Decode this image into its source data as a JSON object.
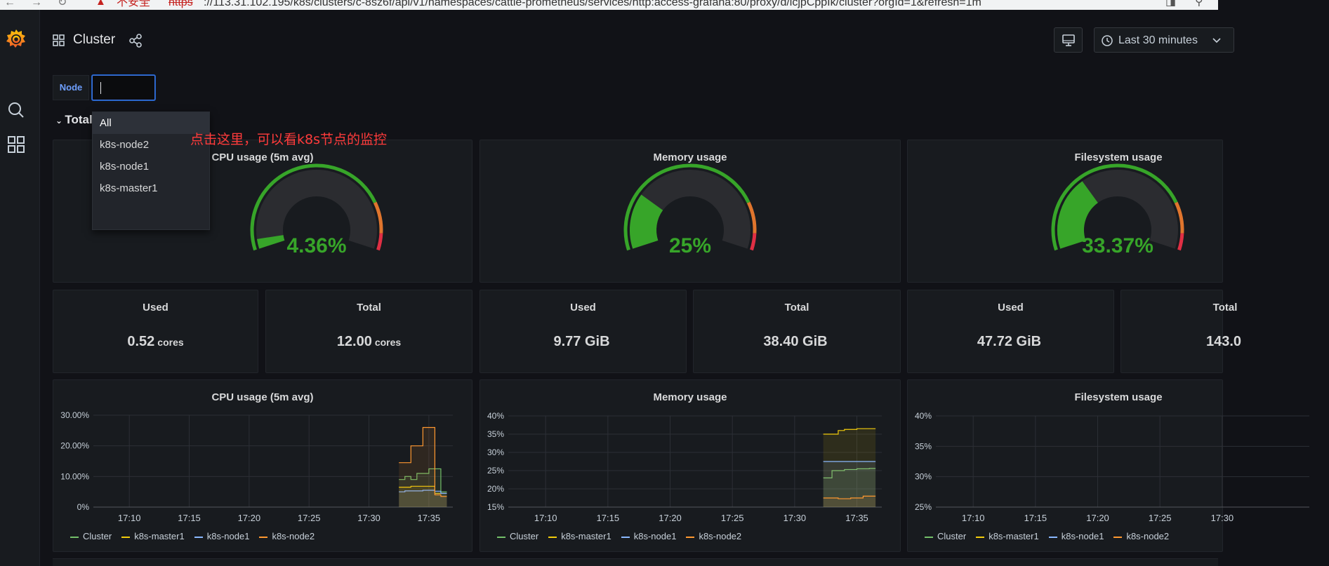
{
  "browser": {
    "security_label": "不安全",
    "protocol": "https",
    "url": "://113.31.102.195/k8s/clusters/c-8sz6f/api/v1/namespaces/cattle-prometheus/services/http:access-grafana:80/proxy/d/lcjpCppIk/cluster?orgId=1&refresh=1m"
  },
  "header": {
    "title": "Cluster",
    "time_range": "Last 30 minutes"
  },
  "variable": {
    "label": "Node",
    "value": ""
  },
  "row": {
    "title": "Total"
  },
  "dropdown": {
    "options": [
      "All",
      "k8s-node2",
      "k8s-node1",
      "k8s-master1"
    ],
    "selected": "All"
  },
  "annotation": "点击这里，可以看k8s节点的监控",
  "gauges": [
    {
      "title": "CPU usage (5m avg)",
      "value_text": "4.36%",
      "value": 4.36
    },
    {
      "title": "Memory usage",
      "value_text": "25%",
      "value": 25
    },
    {
      "title": "Filesystem usage",
      "value_text": "33.37%",
      "value": 33.37
    }
  ],
  "stats": [
    {
      "title": "Used",
      "value": "0.52",
      "unit": "cores"
    },
    {
      "title": "Total",
      "value": "12.00",
      "unit": "cores"
    },
    {
      "title": "Used",
      "value": "9.77 GiB",
      "unit": ""
    },
    {
      "title": "Total",
      "value": "38.40 GiB",
      "unit": ""
    },
    {
      "title": "Used",
      "value": "47.72 GiB",
      "unit": ""
    },
    {
      "title": "Total",
      "value": "143.0",
      "unit": ""
    }
  ],
  "colors": {
    "gauge_green": "#37a529",
    "gauge_orange": "#e0752d",
    "gauge_red": "#e02f44",
    "cluster": "#73bf69",
    "k8s-master1": "#f2cc0c",
    "k8s-node1": "#8ab8ff",
    "k8s-node2": "#ff9830"
  },
  "chart_data": [
    {
      "type": "line",
      "title": "CPU usage (5m avg)",
      "x_ticks": [
        "17:10",
        "17:15",
        "17:20",
        "17:25",
        "17:30",
        "17:35"
      ],
      "y_ticks": [
        "0%",
        "10.00%",
        "20.00%",
        "30.00%"
      ],
      "ylim": [
        0,
        30
      ],
      "legend": [
        "Cluster",
        "k8s-master1",
        "k8s-node1",
        "k8s-node2"
      ],
      "x": [
        32.5,
        33.0,
        33.5,
        34.0,
        34.5,
        35.0,
        35.5,
        36.0,
        36.5
      ],
      "series": [
        {
          "name": "Cluster",
          "values": [
            9,
            10,
            9,
            11,
            11,
            12.5,
            12.5,
            5,
            5
          ]
        },
        {
          "name": "k8s-master1",
          "values": [
            6.5,
            6.5,
            6.8,
            6.8,
            6.8,
            6.8,
            4.5,
            4.5,
            4.5
          ]
        },
        {
          "name": "k8s-node1",
          "values": [
            5,
            5.3,
            5.3,
            5.3,
            5.5,
            5.5,
            5.2,
            4.5,
            4.5
          ]
        },
        {
          "name": "k8s-node2",
          "values": [
            14.5,
            14.5,
            20,
            20,
            26,
            26,
            4,
            3.5,
            3.5
          ]
        }
      ]
    },
    {
      "type": "line",
      "title": "Memory usage",
      "x_ticks": [
        "17:10",
        "17:15",
        "17:20",
        "17:25",
        "17:30",
        "17:35"
      ],
      "y_ticks": [
        "15%",
        "20%",
        "25%",
        "30%",
        "35%",
        "40%"
      ],
      "ylim": [
        15,
        40
      ],
      "legend": [
        "Cluster",
        "k8s-master1",
        "k8s-node1",
        "k8s-node2"
      ],
      "x": [
        32.3,
        33.0,
        33.5,
        34.0,
        34.5,
        35.0,
        35.5,
        36.0,
        36.5
      ],
      "series": [
        {
          "name": "Cluster",
          "values": [
            23,
            25,
            25,
            25.3,
            25.3,
            25.5,
            25.5,
            25.6,
            25.6
          ]
        },
        {
          "name": "k8s-master1",
          "values": [
            35,
            35,
            36,
            36.3,
            36.3,
            36.5,
            36.5,
            36.5,
            36.5
          ]
        },
        {
          "name": "k8s-node1",
          "values": [
            27.5,
            27.5,
            27.5,
            27.5,
            27.5,
            27.5,
            27.5,
            27.5,
            27.5
          ]
        },
        {
          "name": "k8s-node2",
          "values": [
            17.5,
            17.5,
            17.3,
            17.3,
            17.5,
            17.5,
            18,
            18,
            18
          ]
        }
      ]
    },
    {
      "type": "line",
      "title": "Filesystem usage",
      "x_ticks": [
        "17:10",
        "17:15",
        "17:20",
        "17:25",
        "17:30"
      ],
      "y_ticks": [
        "25%",
        "30%",
        "35%",
        "40%"
      ],
      "ylim": [
        25,
        40
      ],
      "legend": [
        "Cluster",
        "k8s-master1",
        "k8s-node1",
        "k8s-node2"
      ],
      "x": [],
      "series": []
    }
  ]
}
